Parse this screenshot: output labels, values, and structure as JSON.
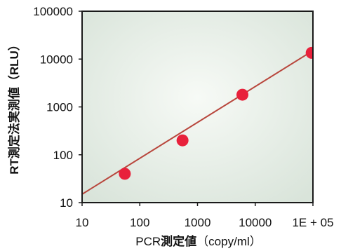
{
  "chart_data": {
    "type": "scatter",
    "xlabel": {
      "prefix": "PCR",
      "bold": "測定値",
      "suffix": "（copy/ml）"
    },
    "ylabel": "RT測定法実測値（RLU）",
    "x_scale": "log",
    "y_scale": "log",
    "xlim": [
      10,
      100000
    ],
    "ylim": [
      10,
      100000
    ],
    "x_ticks": [
      {
        "value": 10,
        "label": "10"
      },
      {
        "value": 100,
        "label": "100"
      },
      {
        "value": 1000,
        "label": "1000"
      },
      {
        "value": 10000,
        "label": "10000"
      },
      {
        "value": 100000,
        "label": "1E + 05"
      }
    ],
    "y_ticks": [
      {
        "value": 10,
        "label": "10"
      },
      {
        "value": 100,
        "label": "100"
      },
      {
        "value": 1000,
        "label": "1000"
      },
      {
        "value": 10000,
        "label": "10000"
      },
      {
        "value": 100000,
        "label": "100000"
      }
    ],
    "points": [
      {
        "x": 55,
        "y": 40
      },
      {
        "x": 550,
        "y": 200
      },
      {
        "x": 6000,
        "y": 1800
      },
      {
        "x": 95000,
        "y": 13500
      }
    ],
    "trendline": {
      "from": [
        10,
        15
      ],
      "to": [
        100000,
        15000
      ]
    },
    "grid": false,
    "colors": {
      "marker": "#e8213b",
      "line": "#b8463c",
      "axis": "#1a1a1a",
      "plot_bg": "#eef3ee"
    }
  }
}
